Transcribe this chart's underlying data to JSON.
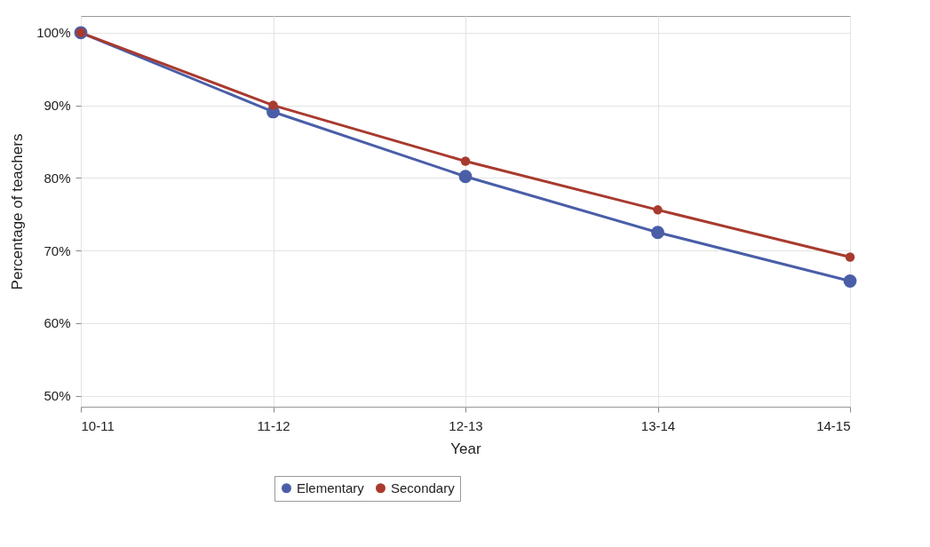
{
  "chart_data": {
    "type": "line",
    "xlabel": "Year",
    "ylabel": "Percentage of teachers",
    "categories": [
      "10-11",
      "11-12",
      "12-13",
      "13-14",
      "14-15"
    ],
    "series": [
      {
        "name": "Elementary",
        "color": "#4a5ea8",
        "values": [
          100,
          89.1,
          80.2,
          72.5,
          65.8
        ]
      },
      {
        "name": "Secondary",
        "color": "#a83a2e",
        "values": [
          100,
          90,
          82.3,
          75.6,
          69.1
        ]
      }
    ],
    "ylim": [
      48.5,
      102.3
    ],
    "yticks": [
      {
        "value": 50,
        "label": "50%"
      },
      {
        "value": 60,
        "label": "60%"
      },
      {
        "value": 70,
        "label": "70%"
      },
      {
        "value": 80,
        "label": "80%"
      },
      {
        "value": 90,
        "label": "90%"
      },
      {
        "value": 100,
        "label": "100%"
      }
    ],
    "grid": true,
    "legend": "bottom",
    "marker": "circle",
    "line_style": "solid"
  }
}
